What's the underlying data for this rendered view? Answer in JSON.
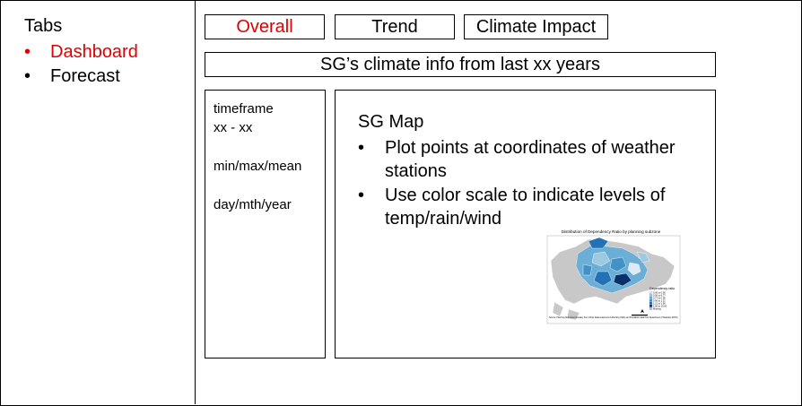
{
  "sidebar": {
    "title": "Tabs",
    "items": [
      {
        "label": "Dashboard",
        "active": true
      },
      {
        "label": "Forecast",
        "active": false
      }
    ]
  },
  "tabs": [
    {
      "label": "Overall",
      "active": true
    },
    {
      "label": "Trend",
      "active": false
    },
    {
      "label": "Climate Impact",
      "active": false
    }
  ],
  "header": {
    "text": "SG’s climate info from last xx years"
  },
  "filters": {
    "timeframe_label": "timeframe",
    "timeframe_value": "xx - xx",
    "stat": "min/max/mean",
    "granularity": "day/mth/year"
  },
  "map_panel": {
    "title": "SG Map",
    "bullets": [
      "Plot points at coordinates of weather stations",
      "Use color scale to indicate levels of temp/rain/wind"
    ],
    "thumbnail": {
      "title": "Distribution of Dependency Ratio by planning subzone",
      "legend_title": "Dependency ratio",
      "legend_items": [
        "0.00 to 0.56",
        "0.56 to 0.77",
        "0.77 to 0.96",
        "0.96 to 1.21",
        "1.21 to 1.56",
        "1.56 to 19.00",
        "Missing"
      ],
      "caption": "Source: Planning Sub-zone boundary from Urban Redevelopment Authorithy (URA) and Population data from Department of Statistics (DOS)"
    }
  },
  "colors": {
    "accent": "#e00000",
    "border": "#000000",
    "map_palette": [
      "#deebf7",
      "#9ecae1",
      "#6baed6",
      "#4292c6",
      "#2171b5",
      "#08306b",
      "#bdbdbd"
    ]
  }
}
